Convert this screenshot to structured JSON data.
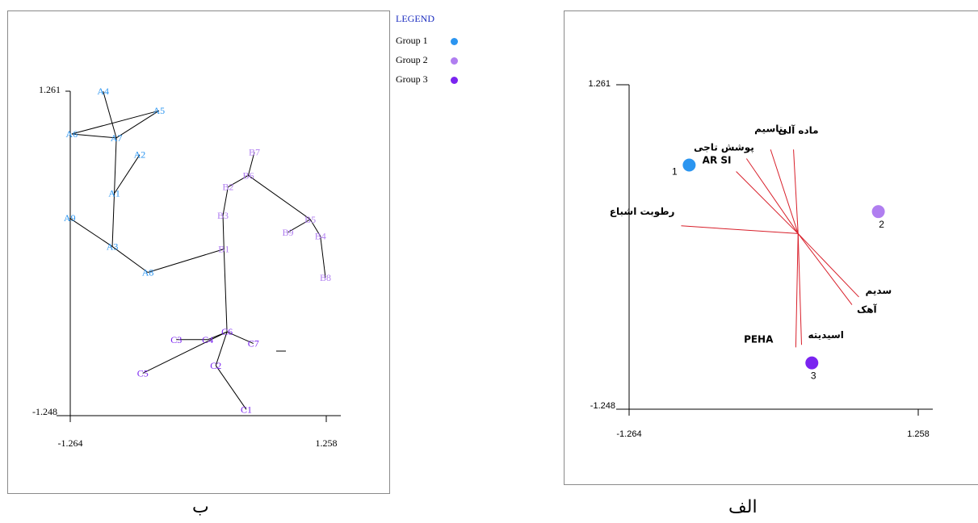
{
  "captions": {
    "left": "ب",
    "right": "الف"
  },
  "legend": {
    "title": "LEGEND",
    "groups": [
      {
        "name": "Group 1",
        "color": "#2b95f0"
      },
      {
        "name": "Group 2",
        "color": "#b07ef0"
      },
      {
        "name": "Group 3",
        "color": "#7a24f0"
      }
    ]
  },
  "chart_data": [
    {
      "type": "scatter",
      "title": "",
      "xlabel": "",
      "ylabel": "",
      "xlim": [
        -1.264,
        1.258
      ],
      "ylim": [
        -1.248,
        1.261
      ],
      "x_tick_labels": [
        "-1.264",
        "1.258"
      ],
      "y_tick_labels": [
        "1.261",
        "-1.248"
      ],
      "grid": false,
      "points": [
        {
          "label": "A1",
          "x": -0.83,
          "y": 0.47,
          "group": 1
        },
        {
          "label": "A2",
          "x": -0.58,
          "y": 0.77,
          "group": 1
        },
        {
          "label": "A3",
          "x": -0.85,
          "y": 0.06,
          "group": 1
        },
        {
          "label": "A4",
          "x": -0.94,
          "y": 1.26,
          "group": 1
        },
        {
          "label": "A5",
          "x": -0.39,
          "y": 1.11,
          "group": 1
        },
        {
          "label": "A6",
          "x": -1.25,
          "y": 0.93,
          "group": 1
        },
        {
          "label": "A7",
          "x": -0.81,
          "y": 0.9,
          "group": 1
        },
        {
          "label": "A8",
          "x": -0.5,
          "y": -0.14,
          "group": 1
        },
        {
          "label": "A9",
          "x": -1.27,
          "y": 0.28,
          "group": 1
        },
        {
          "label": "B1",
          "x": 0.25,
          "y": 0.04,
          "group": 2
        },
        {
          "label": "B2",
          "x": 0.29,
          "y": 0.52,
          "group": 2
        },
        {
          "label": "B3",
          "x": 0.24,
          "y": 0.3,
          "group": 2
        },
        {
          "label": "B4",
          "x": 1.2,
          "y": 0.14,
          "group": 2
        },
        {
          "label": "B5",
          "x": 1.1,
          "y": 0.27,
          "group": 2
        },
        {
          "label": "B6",
          "x": 0.49,
          "y": 0.61,
          "group": 2
        },
        {
          "label": "B7",
          "x": 0.55,
          "y": 0.79,
          "group": 2
        },
        {
          "label": "B8",
          "x": 1.25,
          "y": -0.18,
          "group": 2
        },
        {
          "label": "B9",
          "x": 0.88,
          "y": 0.17,
          "group": 2
        },
        {
          "label": "C1",
          "x": 0.47,
          "y": -1.2,
          "group": 3
        },
        {
          "label": "C2",
          "x": 0.17,
          "y": -0.86,
          "group": 3
        },
        {
          "label": "C3",
          "x": -0.22,
          "y": -0.66,
          "group": 3
        },
        {
          "label": "C4",
          "x": 0.09,
          "y": -0.66,
          "group": 3
        },
        {
          "label": "C5",
          "x": -0.55,
          "y": -0.92,
          "group": 3
        },
        {
          "label": "C6",
          "x": 0.28,
          "y": -0.6,
          "group": 3
        },
        {
          "label": "C7",
          "x": 0.54,
          "y": -0.69,
          "group": 3
        }
      ],
      "edges": [
        [
          "A4",
          "A7"
        ],
        [
          "A7",
          "A6"
        ],
        [
          "A6",
          "A5"
        ],
        [
          "A5",
          "A7"
        ],
        [
          "A7",
          "A1"
        ],
        [
          "A1",
          "A2"
        ],
        [
          "A1",
          "A3"
        ],
        [
          "A9",
          "A3"
        ],
        [
          "A3",
          "A8"
        ],
        [
          "A8",
          "B1"
        ],
        [
          "B1",
          "B3"
        ],
        [
          "B3",
          "B2"
        ],
        [
          "B2",
          "B6"
        ],
        [
          "B6",
          "B7"
        ],
        [
          "B6",
          "B5"
        ],
        [
          "B5",
          "B9"
        ],
        [
          "B5",
          "B4"
        ],
        [
          "B4",
          "B8"
        ],
        [
          "B1",
          "C6"
        ],
        [
          "C6",
          "C4"
        ],
        [
          "C4",
          "C3"
        ],
        [
          "C6",
          "C5"
        ],
        [
          "C6",
          "C2"
        ],
        [
          "C6",
          "C7"
        ],
        [
          "C2",
          "C1"
        ]
      ]
    },
    {
      "type": "scatter",
      "title": "",
      "xlabel": "",
      "ylabel": "",
      "xlim": [
        -1.264,
        1.258
      ],
      "ylim": [
        -1.248,
        1.261
      ],
      "x_tick_labels": [
        "-1.264",
        "1.258"
      ],
      "y_tick_labels": [
        "1.261",
        "-1.248"
      ],
      "grid": false,
      "origin": {
        "x": 0.21,
        "y": 0.11
      },
      "vectors": [
        {
          "label": "ماده آلی",
          "x": 0.17,
          "y": 0.76
        },
        {
          "label": "پتاسیم",
          "x": -0.03,
          "y": 0.76
        },
        {
          "label": "پوشش تاجی",
          "x": -0.24,
          "y": 0.69
        },
        {
          "label": "AR SI",
          "x": -0.33,
          "y": 0.59
        },
        {
          "label": "رطوبت اشباع",
          "x": -0.81,
          "y": 0.17
        },
        {
          "label": "سدیم",
          "x": 0.74,
          "y": -0.38
        },
        {
          "label": "آهک",
          "x": 0.68,
          "y": -0.44
        },
        {
          "label": "اسیدیته",
          "x": 0.24,
          "y": -0.75
        },
        {
          "label": "PEHA",
          "x": 0.19,
          "y": -0.77
        }
      ],
      "points": [
        {
          "label": "1",
          "x": -0.74,
          "y": 0.64,
          "group": 1
        },
        {
          "label": "2",
          "x": 0.91,
          "y": 0.28,
          "group": 2
        },
        {
          "label": "3",
          "x": 0.33,
          "y": -0.89,
          "group": 3
        }
      ]
    }
  ]
}
